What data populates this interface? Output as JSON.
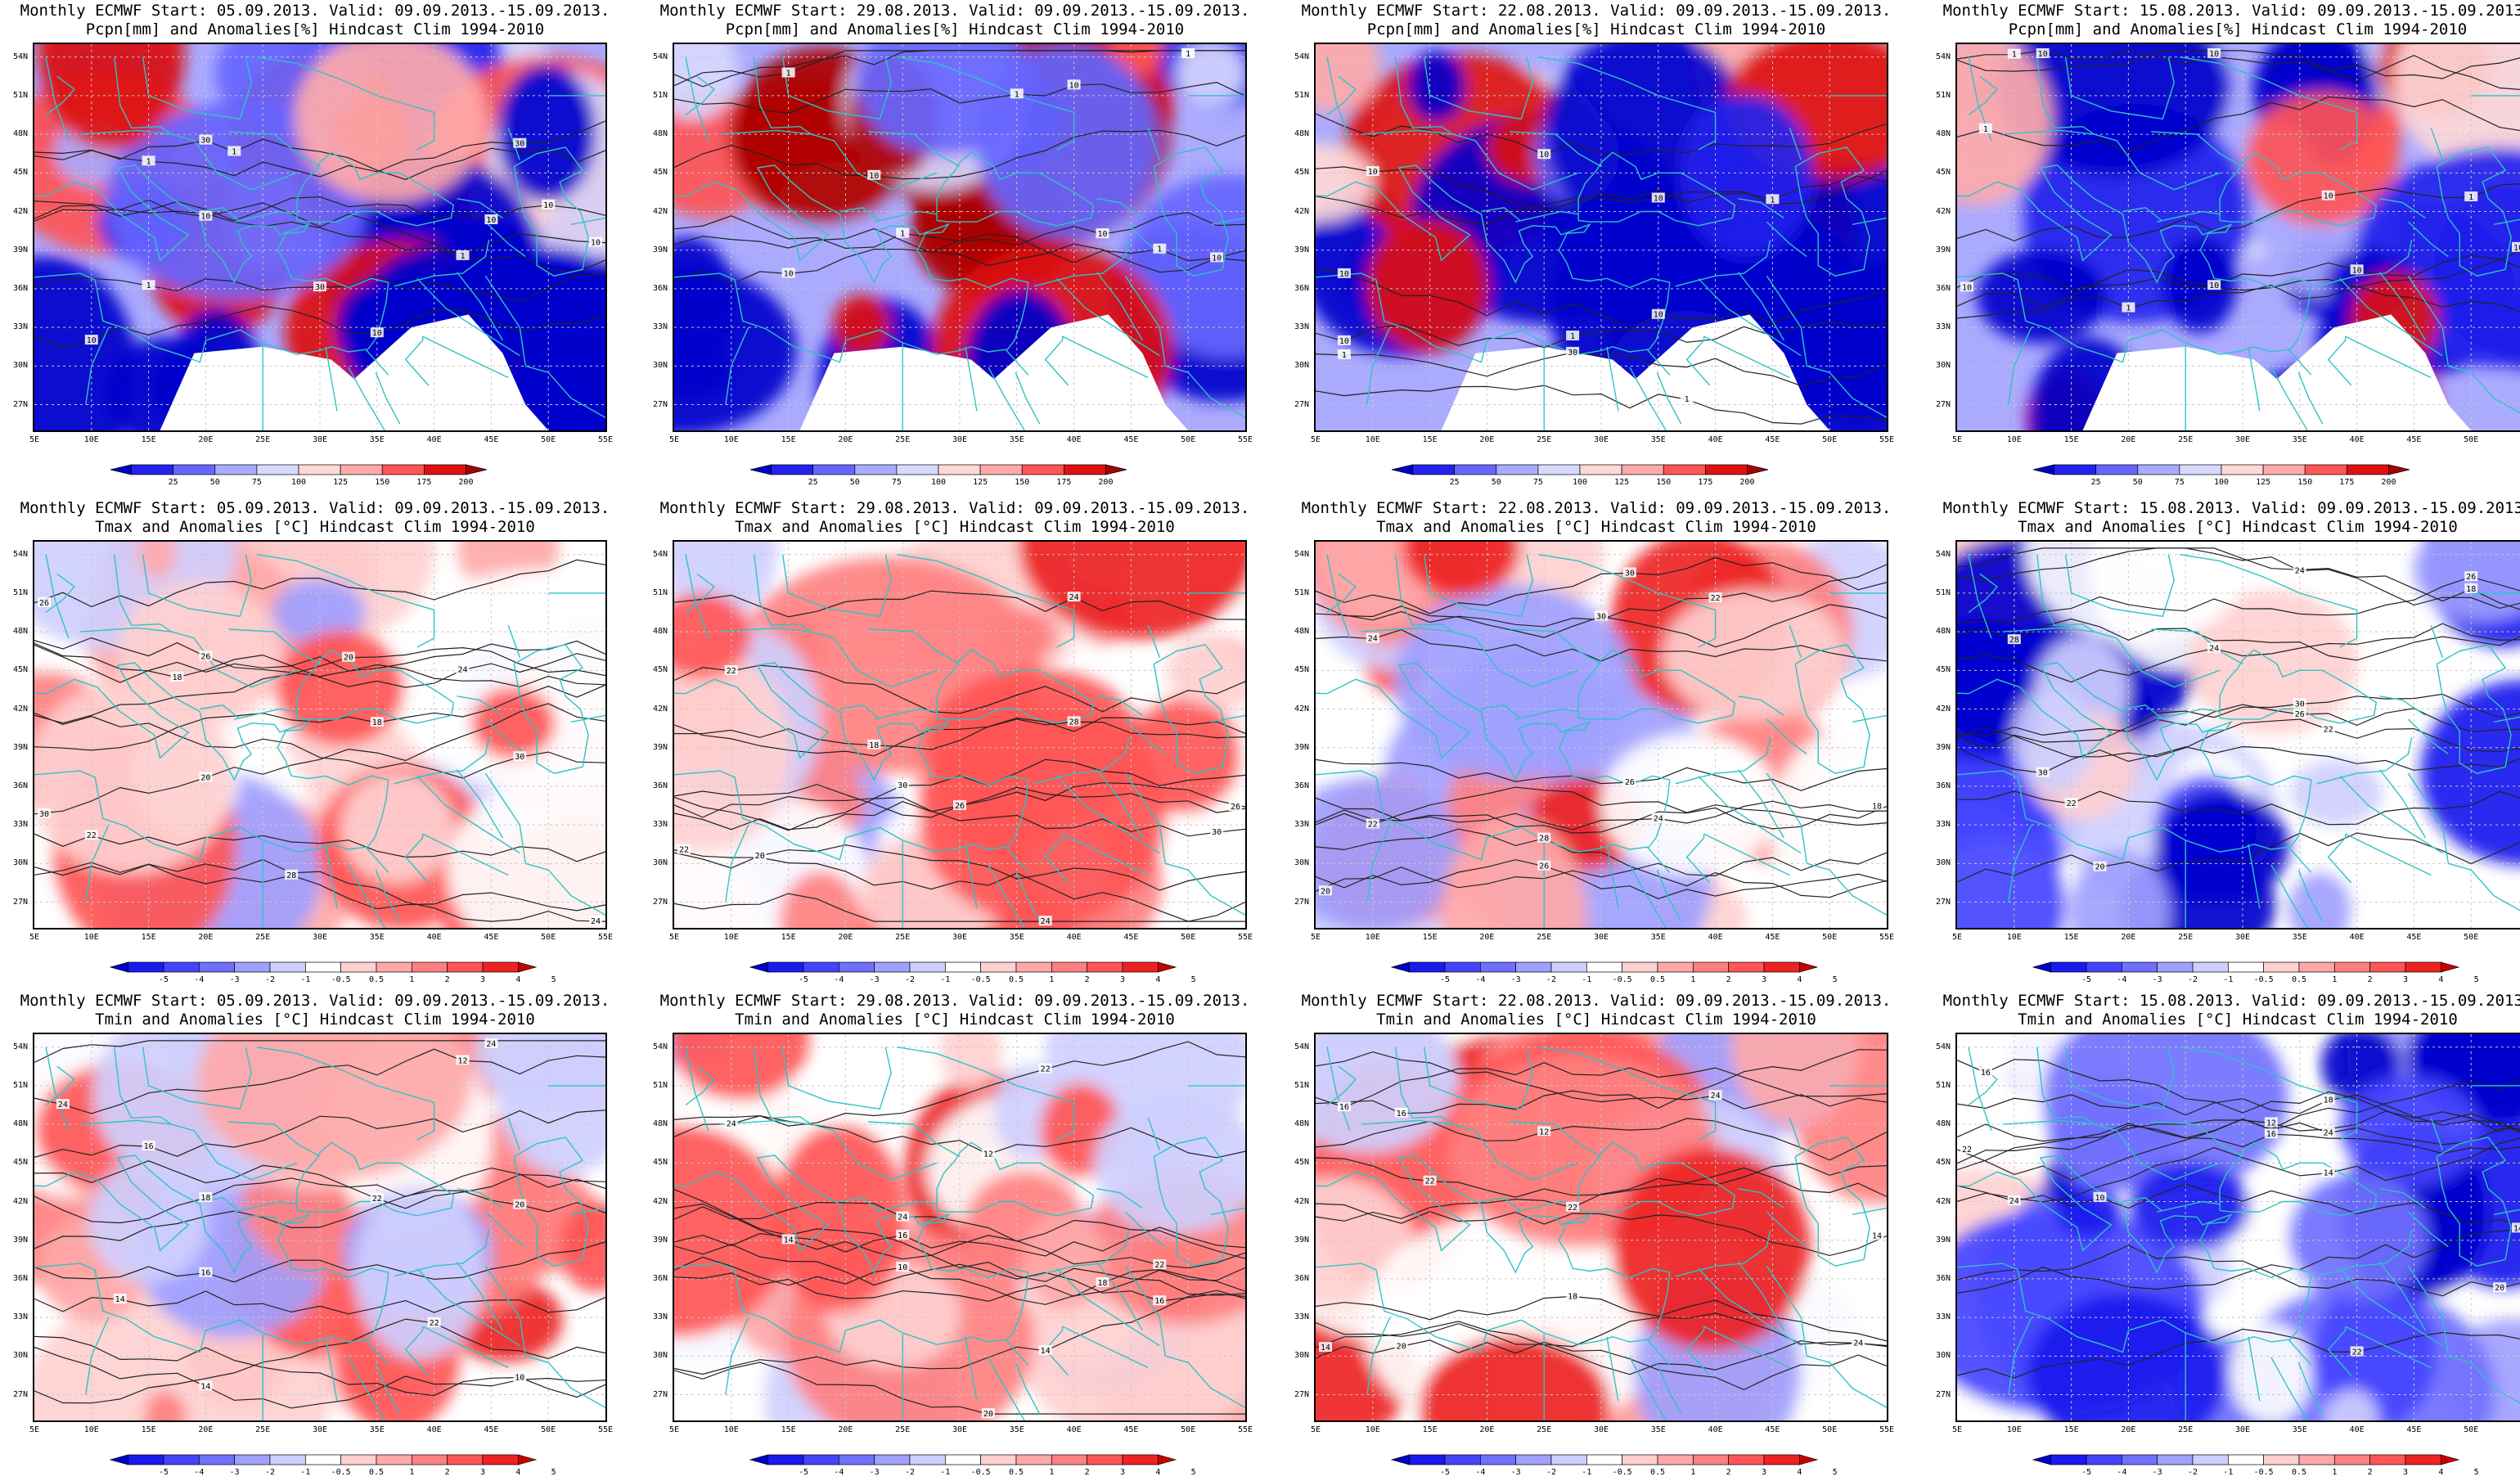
{
  "panels": [
    {
      "id": "pcpn-0509",
      "title1": "Monthly ECMWF Start: 05.09.2013. Valid: 09.09.2013.-15.09.2013.",
      "title2": "Pcpn[mm] and Anomalies[%] Hindcast Clim 1994-2010",
      "variable": "pcpn",
      "contours": [
        "10",
        "30",
        "10",
        "1",
        "1",
        "1",
        "10",
        "10",
        "1",
        "10",
        "30",
        "10",
        "30"
      ]
    },
    {
      "id": "pcpn-2908",
      "title1": "Monthly ECMWF Start: 29.08.2013. Valid: 09.09.2013.-15.09.2013.",
      "title2": "Pcpn[mm] and Anomalies[%] Hindcast Clim 1994-2010",
      "variable": "pcpn",
      "contours": [
        "10",
        "1",
        "1",
        "1",
        "10",
        "1",
        "10",
        "1",
        "1",
        "10",
        "10"
      ]
    },
    {
      "id": "pcpn-2208",
      "title1": "Monthly ECMWF Start: 22.08.2013. Valid: 09.09.2013.-15.09.2013.",
      "title2": "Pcpn[mm] and Anomalies[%] Hindcast Clim 1994-2010",
      "variable": "pcpn",
      "contours": [
        "10",
        "30",
        "10",
        "1",
        "1",
        "10",
        "10",
        "10",
        "1",
        "1",
        "10"
      ]
    },
    {
      "id": "pcpn-1508",
      "title1": "Monthly ECMWF Start: 15.08.2013. Valid: 09.09.2013.-15.09.2013.",
      "title2": "Pcpn[mm] and Anomalies[%] Hindcast Clim 1994-2010",
      "variable": "pcpn",
      "contours": [
        "10",
        "10",
        "10",
        "1",
        "1",
        "1",
        "10",
        "10",
        "10",
        "1",
        "10"
      ]
    },
    {
      "id": "tmax-0509",
      "title1": "Monthly ECMWF Start: 05.09.2013. Valid: 09.09.2013.-15.09.2013.",
      "title2": "Tmax and Anomalies [°C] Hindcast Clim 1994-2010",
      "variable": "tmax",
      "contours": [
        "20",
        "18",
        "22",
        "24",
        "20",
        "26",
        "28",
        "26",
        "30",
        "24",
        "18",
        "30"
      ]
    },
    {
      "id": "tmax-2908",
      "title1": "Monthly ECMWF Start: 29.08.2013. Valid: 09.09.2013.-15.09.2013.",
      "title2": "Tmax and Anomalies [°C] Hindcast Clim 1994-2010",
      "variable": "tmax",
      "contours": [
        "20",
        "22",
        "24",
        "18",
        "26",
        "28",
        "26",
        "30",
        "24",
        "22",
        "30"
      ]
    },
    {
      "id": "tmax-2208",
      "title1": "Monthly ECMWF Start: 22.08.2013. Valid: 09.09.2013.-15.09.2013.",
      "title2": "Tmax and Anomalies [°C] Hindcast Clim 1994-2010",
      "variable": "tmax",
      "contours": [
        "20",
        "22",
        "24",
        "18",
        "26",
        "28",
        "26",
        "30",
        "24",
        "22",
        "30"
      ]
    },
    {
      "id": "tmax-1508",
      "title1": "Monthly ECMWF Start: 15.08.2013. Valid: 09.09.2013.-15.09.2013.",
      "title2": "Tmax and Anomalies [°C] Hindcast Clim 1994-2010",
      "variable": "tmax",
      "contours": [
        "18",
        "20",
        "22",
        "24",
        "26",
        "28",
        "26",
        "30",
        "24",
        "22",
        "30"
      ]
    },
    {
      "id": "tmin-0509",
      "title1": "Monthly ECMWF Start: 05.09.2013. Valid: 09.09.2013.-15.09.2013.",
      "title2": "Tmin and Anomalies [°C] Hindcast Clim 1994-2010",
      "variable": "tmin",
      "contours": [
        "12",
        "10",
        "14",
        "16",
        "18",
        "20",
        "22",
        "24",
        "14",
        "16",
        "22",
        "24"
      ]
    },
    {
      "id": "tmin-2908",
      "title1": "Monthly ECMWF Start: 29.08.2013. Valid: 09.09.2013.-15.09.2013.",
      "title2": "Tmin and Anomalies [°C] Hindcast Clim 1994-2010",
      "variable": "tmin",
      "contours": [
        "12",
        "10",
        "14",
        "16",
        "18",
        "20",
        "22",
        "24",
        "14",
        "16",
        "22",
        "24"
      ]
    },
    {
      "id": "tmin-2208",
      "title1": "Monthly ECMWF Start: 22.08.2013. Valid: 09.09.2013.-15.09.2013.",
      "title2": "Tmin and Anomalies [°C] Hindcast Clim 1994-2010",
      "variable": "tmin",
      "contours": [
        "12",
        "14",
        "16",
        "18",
        "20",
        "22",
        "24",
        "14",
        "16",
        "22",
        "24"
      ]
    },
    {
      "id": "tmin-1508",
      "title1": "Monthly ECMWF Start: 15.08.2013. Valid: 09.09.2013.-15.09.2013.",
      "title2": "Tmin and Anomalies [°C] Hindcast Clim 1994-2010",
      "variable": "tmin",
      "contours": [
        "10",
        "12",
        "14",
        "16",
        "18",
        "20",
        "22",
        "24",
        "14",
        "16",
        "22",
        "24"
      ]
    }
  ],
  "lat_labels": [
    "54N",
    "51N",
    "48N",
    "45N",
    "42N",
    "39N",
    "36N",
    "33N",
    "30N",
    "27N"
  ],
  "lon_labels": [
    "5E",
    "10E",
    "15E",
    "20E",
    "25E",
    "30E",
    "35E",
    "40E",
    "45E",
    "50E",
    "55E"
  ],
  "colorbars": {
    "pcpn": {
      "labels": [
        "25",
        "50",
        "75",
        "100",
        "125",
        "150",
        "175",
        "200"
      ],
      "colors": [
        "#0000cc",
        "#2222ee",
        "#6666ff",
        "#aaaaff",
        "#d8d8ff",
        "#ffd8d8",
        "#ffaaaa",
        "#ff5555",
        "#dd1111",
        "#aa0000"
      ]
    },
    "temp": {
      "labels": [
        "-5",
        "-4",
        "-3",
        "-2",
        "-1",
        "-0.5",
        "0.5",
        "1",
        "2",
        "3",
        "4",
        "5"
      ],
      "colors": [
        "#0000cc",
        "#1a1aee",
        "#4444ff",
        "#7070ff",
        "#a0a0ff",
        "#cfcfff",
        "#ffffff",
        "#ffd0d0",
        "#ffa8a8",
        "#ff8080",
        "#ff5555",
        "#ee2222",
        "#cc0000"
      ]
    }
  },
  "map_colors": {
    "coast": "#2ec4c4",
    "contour": "#222222",
    "grid": "#c8c8c8"
  }
}
